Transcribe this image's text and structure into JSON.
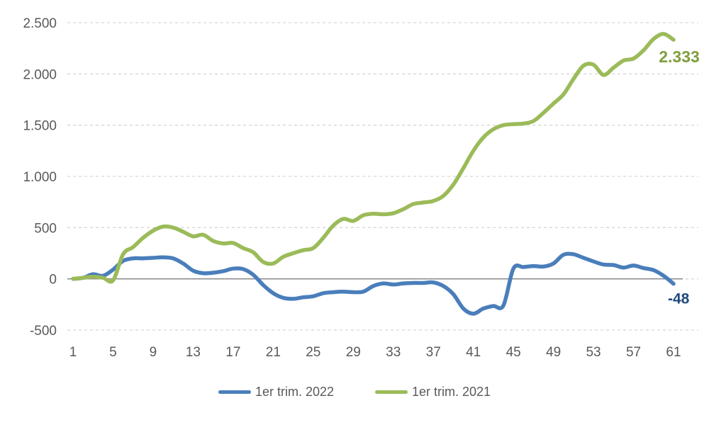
{
  "chart_data": {
    "type": "line",
    "title": "",
    "xlabel": "",
    "ylabel": "",
    "x": [
      1,
      2,
      3,
      4,
      5,
      6,
      7,
      8,
      9,
      10,
      11,
      12,
      13,
      14,
      15,
      16,
      17,
      18,
      19,
      20,
      21,
      22,
      23,
      24,
      25,
      26,
      27,
      28,
      29,
      30,
      31,
      32,
      33,
      34,
      35,
      36,
      37,
      38,
      39,
      40,
      41,
      42,
      43,
      44,
      45,
      46,
      47,
      48,
      49,
      50,
      51,
      52,
      53,
      54,
      55,
      56,
      57,
      58,
      59,
      60,
      61
    ],
    "x_ticks": [
      1,
      5,
      9,
      13,
      17,
      21,
      25,
      29,
      33,
      37,
      41,
      45,
      49,
      53,
      57,
      61
    ],
    "y_ticks": [
      {
        "label": "2.500",
        "value": 2500
      },
      {
        "label": "2.000",
        "value": 2000
      },
      {
        "label": "1.500",
        "value": 1500
      },
      {
        "label": "1.000",
        "value": 1000
      },
      {
        "label": "500",
        "value": 500
      },
      {
        "label": "0",
        "value": 0
      },
      {
        "label": "-500",
        "value": -500
      }
    ],
    "ylim": [
      -500,
      2500
    ],
    "grid": "horizontal-dashed",
    "grid_color": "#d6d6d6",
    "zero_line": true,
    "zero_line_color": "#808080",
    "tick_color": "#595959",
    "legend_position": "bottom",
    "series": [
      {
        "name": "1er trim. 2022",
        "color": "#4a7ebb",
        "label_color": "#1f497d",
        "end_label": "-48",
        "values": [
          0,
          10,
          45,
          30,
          90,
          175,
          200,
          200,
          205,
          210,
          200,
          150,
          80,
          55,
          60,
          75,
          100,
          95,
          40,
          -60,
          -140,
          -185,
          -195,
          -180,
          -170,
          -140,
          -130,
          -125,
          -130,
          -125,
          -70,
          -45,
          -55,
          -45,
          -40,
          -40,
          -35,
          -70,
          -150,
          -290,
          -340,
          -290,
          -265,
          -260,
          100,
          115,
          125,
          120,
          150,
          235,
          240,
          205,
          170,
          140,
          135,
          110,
          130,
          105,
          85,
          30,
          -48
        ]
      },
      {
        "name": "1er trim. 2021",
        "color": "#9bbb59",
        "label_color": "#7f9e3d",
        "end_label": "2.333",
        "values": [
          0,
          10,
          20,
          10,
          -15,
          240,
          310,
          400,
          470,
          510,
          500,
          460,
          415,
          430,
          370,
          345,
          350,
          300,
          260,
          165,
          150,
          215,
          250,
          280,
          300,
          400,
          520,
          585,
          565,
          620,
          635,
          630,
          640,
          680,
          730,
          745,
          760,
          810,
          920,
          1080,
          1250,
          1380,
          1460,
          1500,
          1510,
          1515,
          1540,
          1620,
          1710,
          1800,
          1950,
          2080,
          2090,
          1990,
          2060,
          2130,
          2150,
          2230,
          2340,
          2390,
          2333
        ]
      }
    ]
  }
}
